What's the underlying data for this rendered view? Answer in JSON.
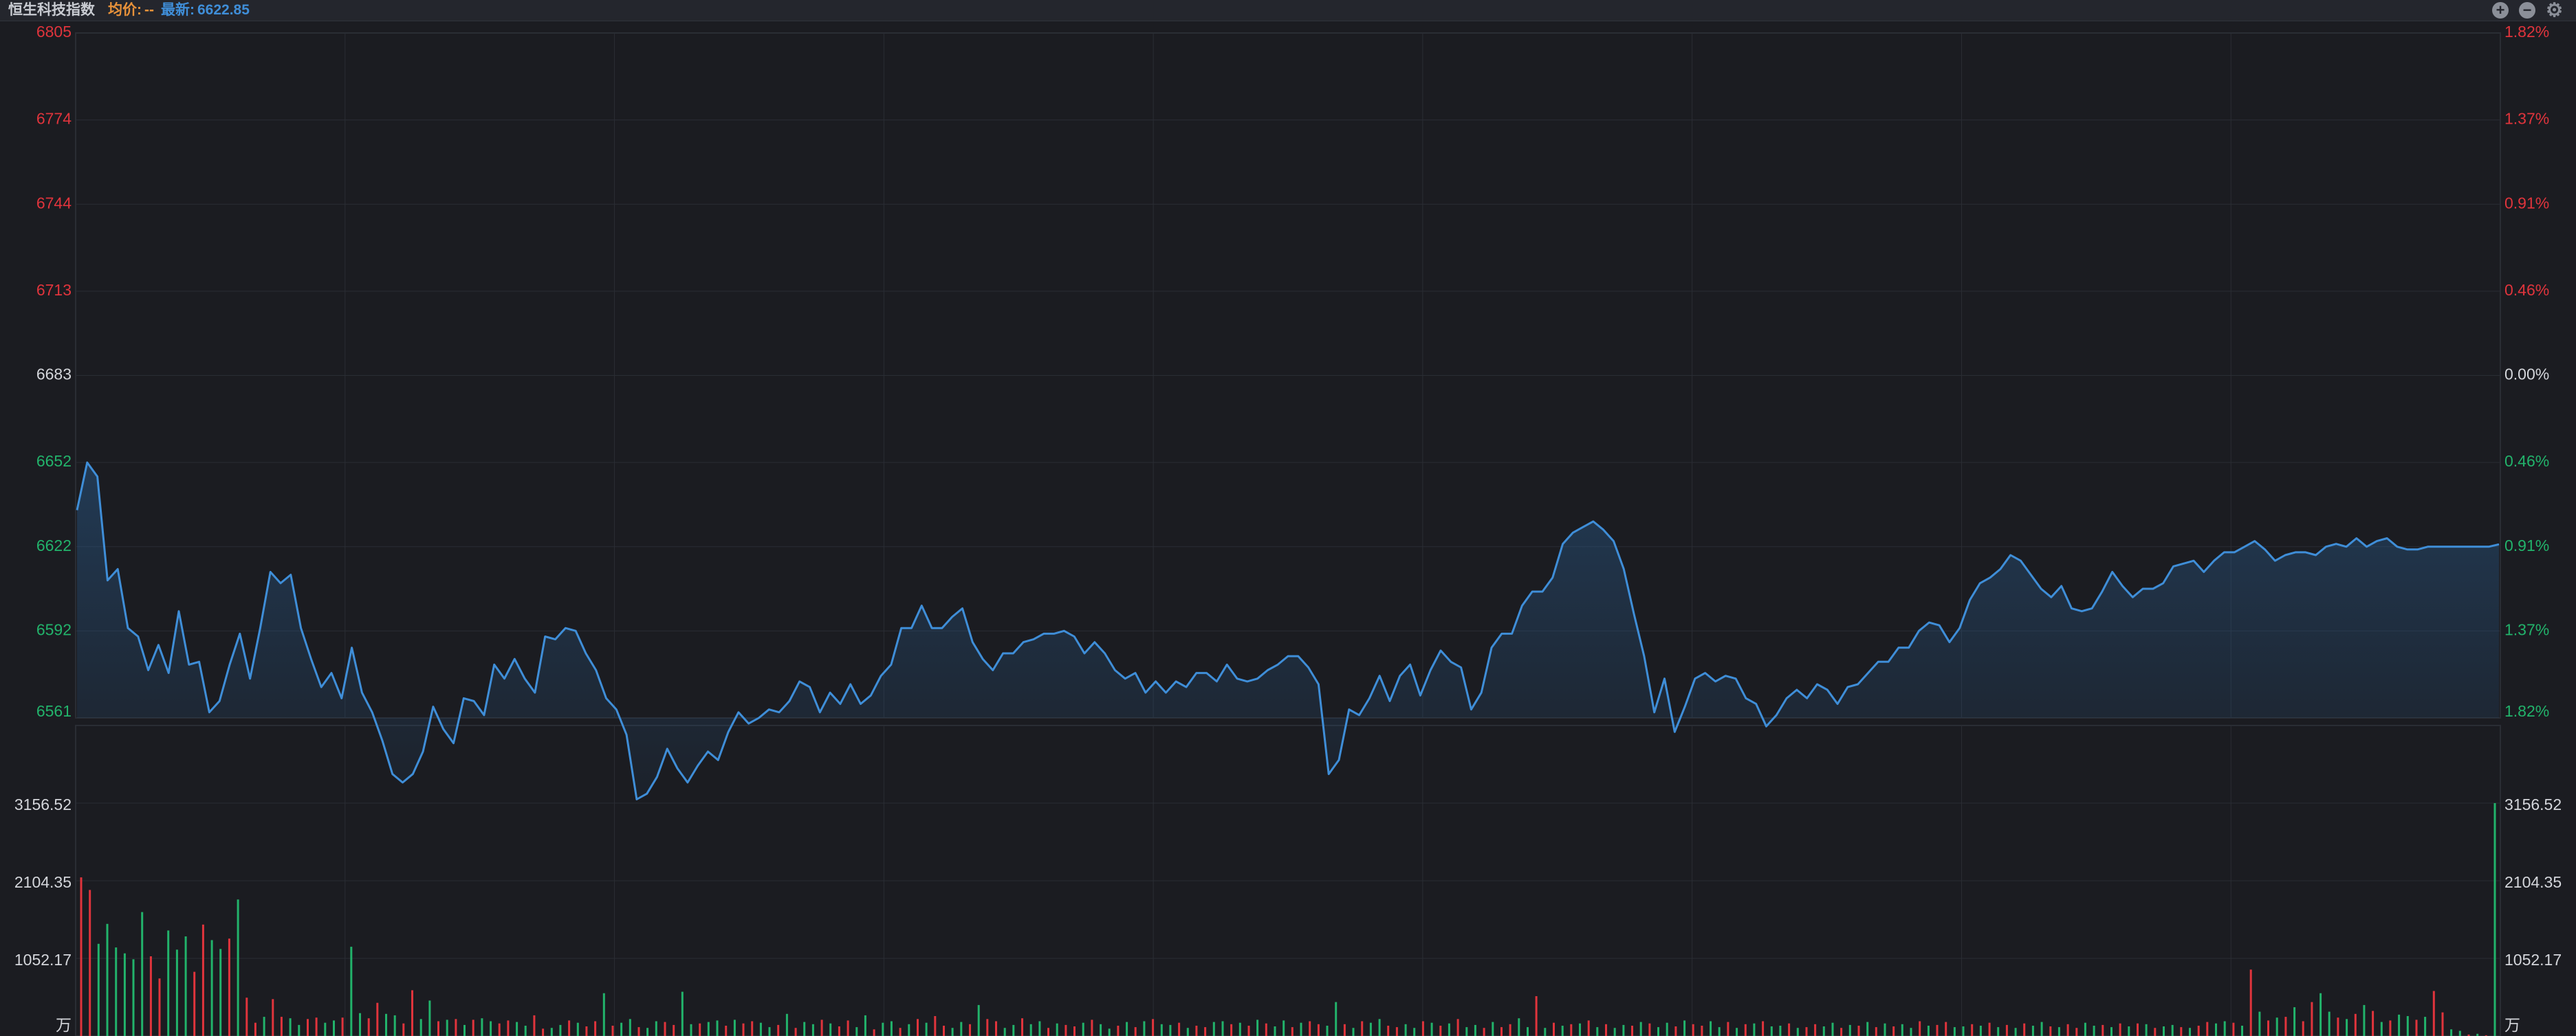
{
  "header": {
    "index_name": "恒生科技指数",
    "avg_label": "均价:",
    "avg_value": "--",
    "last_label": "最新:",
    "last_value": "6622.85",
    "zoom_in_icon": "plus-circle-icon",
    "zoom_out_icon": "minus-circle-icon",
    "settings_icon": "gear-icon"
  },
  "colors": {
    "up": "#e0343c",
    "down": "#22b36b",
    "neutral": "#d4d6db",
    "line": "#3f8ed8",
    "background": "#1b1c21",
    "grid": "#2a2d34"
  },
  "chart_data": [
    {
      "type": "line",
      "series": [
        {
          "values": [
            6635,
            6652,
            6647,
            6610,
            6614,
            6593,
            6590,
            6578,
            6587,
            6577,
            6599,
            6580,
            6581,
            6563,
            6567,
            6580,
            6591,
            6575,
            6593,
            6613,
            6609,
            6612,
            6593,
            6582,
            6572,
            6577,
            6568,
            6586,
            6570,
            6563,
            6553,
            6541,
            6538,
            6541,
            6549,
            6565,
            6557,
            6552,
            6568,
            6567,
            6562,
            6580,
            6575,
            6582,
            6575,
            6570,
            6590,
            6589,
            6593,
            6592,
            6584,
            6578,
            6568,
            6564,
            6555,
            6532,
            6534,
            6540,
            6550,
            6543,
            6538,
            6544,
            6549,
            6546,
            6556,
            6563,
            6559,
            6561,
            6564,
            6563,
            6567,
            6574,
            6572,
            6563,
            6570,
            6566,
            6573,
            6566,
            6569,
            6576,
            6580,
            6593,
            6593,
            6601,
            6593,
            6593,
            6597,
            6600,
            6588,
            6582,
            6578,
            6584,
            6584,
            6588,
            6589,
            6591,
            6591,
            6592,
            6590,
            6584,
            6588,
            6584,
            6578,
            6575,
            6577,
            6570,
            6574,
            6570,
            6574,
            6572,
            6577,
            6577,
            6574,
            6580,
            6575,
            6574,
            6575,
            6578,
            6580,
            6583,
            6583,
            6579,
            6573,
            6541,
            6546,
            6564,
            6562,
            6568,
            6576,
            6567,
            6576,
            6580,
            6569,
            6578,
            6585,
            6581,
            6579,
            6564,
            6570,
            6586,
            6591,
            6591,
            6601,
            6606,
            6606,
            6611,
            6623,
            6627,
            6629,
            6631,
            6628,
            6624,
            6614,
            6598,
            6583,
            6563,
            6575,
            6556,
            6565,
            6575,
            6577,
            6574,
            6576,
            6575,
            6568,
            6566,
            6558,
            6562,
            6568,
            6571,
            6568,
            6573,
            6571,
            6566,
            6572,
            6573,
            6577,
            6581,
            6581,
            6586,
            6586,
            6592,
            6595,
            6594,
            6588,
            6593,
            6603,
            6609,
            6611,
            6614,
            6619,
            6617,
            6612,
            6607,
            6604,
            6608,
            6600,
            6599,
            6600,
            6606,
            6613,
            6608,
            6604,
            6607,
            6607,
            6609,
            6615,
            6616,
            6617,
            6613,
            6617,
            6620,
            6620,
            6622,
            6624,
            6621,
            6617,
            6619,
            6620,
            6620,
            6619,
            6622,
            6623,
            6622,
            6625,
            6622,
            6624,
            6625,
            6622,
            6621,
            6621,
            6622,
            6622,
            6622,
            6622,
            6622,
            6622,
            6622,
            6622.85
          ],
          "color": "#3f8ed8"
        }
      ],
      "ylim": [
        6561,
        6805
      ],
      "y_ticks": [
        "6805",
        "6774",
        "6744",
        "6713",
        "6683",
        "6652",
        "6622",
        "6592",
        "6561"
      ],
      "y_tick_colors": [
        "up",
        "up",
        "up",
        "up",
        "neutral",
        "down",
        "down",
        "down",
        "down"
      ],
      "right_ticks": [
        "1.82%",
        "1.37%",
        "0.91%",
        "0.46%",
        "0.00%",
        "0.46%",
        "0.91%",
        "1.37%",
        "1.82%"
      ],
      "right_tick_colors": [
        "up",
        "up",
        "up",
        "up",
        "neutral",
        "down",
        "down",
        "down",
        "down"
      ],
      "grid": true
    },
    {
      "type": "bar",
      "values": [
        2150,
        1980,
        1250,
        1520,
        1200,
        1120,
        1040,
        1680,
        1080,
        780,
        1430,
        1170,
        1350,
        870,
        1510,
        1300,
        1180,
        1320,
        1850,
        520,
        180,
        260,
        500,
        260,
        240,
        150,
        230,
        250,
        180,
        210,
        250,
        1210,
        310,
        240,
        450,
        300,
        280,
        170,
        620,
        230,
        480,
        200,
        220,
        230,
        150,
        220,
        240,
        200,
        170,
        210,
        190,
        140,
        280,
        100,
        110,
        150,
        210,
        180,
        130,
        200,
        580,
        140,
        180,
        230,
        120,
        110,
        200,
        190,
        150,
        600,
        160,
        170,
        190,
        210,
        140,
        220,
        170,
        200,
        180,
        120,
        150,
        300,
        110,
        190,
        160,
        220,
        170,
        130,
        210,
        120,
        280,
        90,
        180,
        200,
        110,
        160,
        230,
        180,
        270,
        140,
        110,
        190,
        160,
        420,
        230,
        200,
        110,
        150,
        240,
        160,
        200,
        110,
        170,
        150,
        130,
        180,
        220,
        160,
        100,
        140,
        190,
        120,
        200,
        230,
        160,
        150,
        180,
        110,
        140,
        120,
        190,
        200,
        160,
        180,
        140,
        220,
        170,
        130,
        210,
        120,
        180,
        200,
        160,
        140,
        460,
        160,
        110,
        200,
        180,
        230,
        140,
        120,
        160,
        110,
        200,
        180,
        140,
        170,
        230,
        120,
        150,
        110,
        190,
        120,
        160,
        240,
        120,
        540,
        110,
        180,
        140,
        160,
        170,
        210,
        120,
        160,
        110,
        150,
        140,
        190,
        170,
        120,
        180,
        130,
        210,
        160,
        140,
        200,
        120,
        190,
        110,
        160,
        170,
        200,
        130,
        140,
        170,
        110,
        120,
        160,
        130,
        180,
        110,
        150,
        140,
        190,
        120,
        170,
        130,
        160,
        110,
        200,
        140,
        150,
        190,
        120,
        130,
        160,
        140,
        180,
        120,
        150,
        110,
        170,
        140,
        190,
        130,
        120,
        160,
        110,
        180,
        140,
        150,
        120,
        170,
        130,
        170,
        160,
        110,
        130,
        150,
        120,
        110,
        140,
        190,
        170,
        200,
        180,
        140,
        900,
        330,
        210,
        250,
        260,
        390,
        200,
        460,
        580,
        330,
        250,
        230,
        300,
        420,
        340,
        190,
        210,
        290,
        270,
        220,
        260,
        610,
        320,
        90,
        70,
        20,
        30,
        10,
        3156.52
      ],
      "colors": [
        "up",
        "up",
        "down",
        "down",
        "down",
        "down",
        "down",
        "down",
        "up",
        "up",
        "down",
        "down",
        "down",
        "up",
        "up",
        "down",
        "down",
        "up",
        "down",
        "up",
        "up",
        "down",
        "up",
        "up",
        "down",
        "down",
        "up",
        "up",
        "down",
        "down",
        "up",
        "down",
        "down",
        "up",
        "up",
        "down",
        "down",
        "up",
        "up",
        "down",
        "down",
        "up",
        "down",
        "up",
        "down",
        "up",
        "down",
        "down",
        "up",
        "up",
        "down",
        "down",
        "up",
        "up",
        "down",
        "down",
        "up",
        "down",
        "up",
        "up",
        "down",
        "up",
        "down",
        "down",
        "up",
        "down",
        "down",
        "up",
        "up",
        "down",
        "down",
        "up",
        "down",
        "down",
        "up",
        "down",
        "up",
        "up",
        "down",
        "down",
        "up",
        "down",
        "up",
        "down",
        "down",
        "up",
        "down",
        "up",
        "up",
        "down",
        "down",
        "up",
        "down",
        "down",
        "up",
        "down",
        "up",
        "down",
        "up",
        "up",
        "down",
        "down",
        "up",
        "down",
        "up",
        "up",
        "down",
        "down",
        "up",
        "down",
        "down",
        "up",
        "down",
        "up",
        "up",
        "down",
        "up",
        "down",
        "down",
        "up",
        "down",
        "up",
        "down",
        "up",
        "down",
        "down",
        "up",
        "down",
        "up",
        "up",
        "down",
        "down",
        "up",
        "down",
        "up",
        "down",
        "up",
        "down",
        "down",
        "up",
        "down",
        "up",
        "up",
        "down",
        "down",
        "up",
        "down",
        "up",
        "down",
        "down",
        "up",
        "up",
        "down",
        "down",
        "up",
        "down",
        "up",
        "down",
        "up",
        "down",
        "down",
        "up",
        "down",
        "up",
        "up",
        "down",
        "down",
        "up",
        "down",
        "up",
        "down",
        "up",
        "down",
        "up",
        "down",
        "up",
        "down",
        "down",
        "up",
        "down",
        "up",
        "down",
        "down",
        "up",
        "down",
        "up",
        "up",
        "down",
        "down",
        "up",
        "down",
        "up",
        "down",
        "up",
        "down",
        "down",
        "up",
        "down",
        "up",
        "up",
        "down",
        "down",
        "up",
        "down",
        "up",
        "down",
        "up",
        "down",
        "up",
        "down",
        "down",
        "up",
        "down",
        "up",
        "up",
        "down",
        "down",
        "up",
        "down",
        "up",
        "down",
        "up",
        "down",
        "up",
        "down",
        "down",
        "up",
        "down",
        "up",
        "up",
        "down",
        "down",
        "up",
        "down",
        "up",
        "down",
        "up",
        "down",
        "up",
        "down",
        "down",
        "up",
        "down",
        "up",
        "up",
        "down",
        "down",
        "up",
        "down",
        "up",
        "down",
        "up",
        "down",
        "up",
        "down",
        "up",
        "up",
        "down",
        "down",
        "up",
        "down",
        "up",
        "down",
        "up",
        "down",
        "up",
        "down",
        "down",
        "up",
        "down",
        "up",
        "up",
        "down",
        "down",
        "up",
        "down",
        "up",
        "down",
        "up",
        "down",
        "up",
        "down",
        "down",
        "up"
      ],
      "ylim": [
        0,
        4208.7
      ],
      "y_ticks": [
        "3156.52",
        "2104.35",
        "1052.17"
      ],
      "unit": "万",
      "grid": true
    }
  ]
}
